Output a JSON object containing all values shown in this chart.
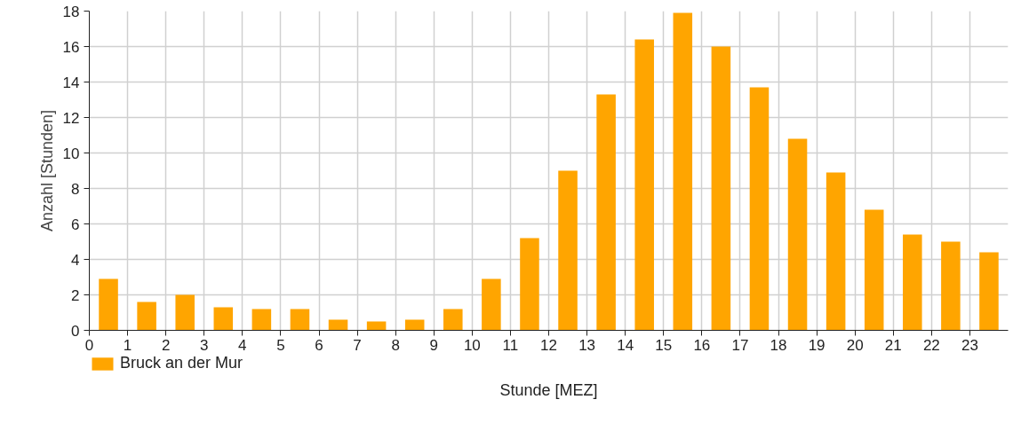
{
  "chart_data": {
    "type": "bar",
    "xlabel": "Stunde [MEZ]",
    "ylabel": "Anzahl [Stunden]",
    "x": [
      0.5,
      1.5,
      2.5,
      3.5,
      4.5,
      5.5,
      6.5,
      7.5,
      8.5,
      9.5,
      10.5,
      11.5,
      12.5,
      13.5,
      14.5,
      15.5,
      16.5,
      17.5,
      18.5,
      19.5,
      20.5,
      21.5,
      22.5,
      23.5
    ],
    "series": [
      {
        "name": "Bruck an der Mur",
        "color": "#ffa500",
        "values": [
          2.9,
          1.6,
          2.0,
          1.3,
          1.2,
          1.2,
          0.6,
          0.5,
          0.6,
          1.2,
          2.9,
          5.2,
          9.0,
          13.3,
          16.4,
          17.9,
          16.0,
          13.7,
          10.8,
          8.9,
          6.8,
          5.4,
          5.0,
          4.4
        ]
      }
    ],
    "xlim": [
      0,
      24
    ],
    "xticks": [
      0,
      1,
      2,
      3,
      4,
      5,
      6,
      7,
      8,
      9,
      10,
      11,
      12,
      13,
      14,
      15,
      16,
      17,
      18,
      19,
      20,
      21,
      22,
      23
    ],
    "ylim": [
      0,
      18
    ],
    "yticks": [
      0,
      2,
      4,
      6,
      8,
      10,
      12,
      14,
      16,
      18
    ],
    "grid": true,
    "legend": "bottom left"
  }
}
